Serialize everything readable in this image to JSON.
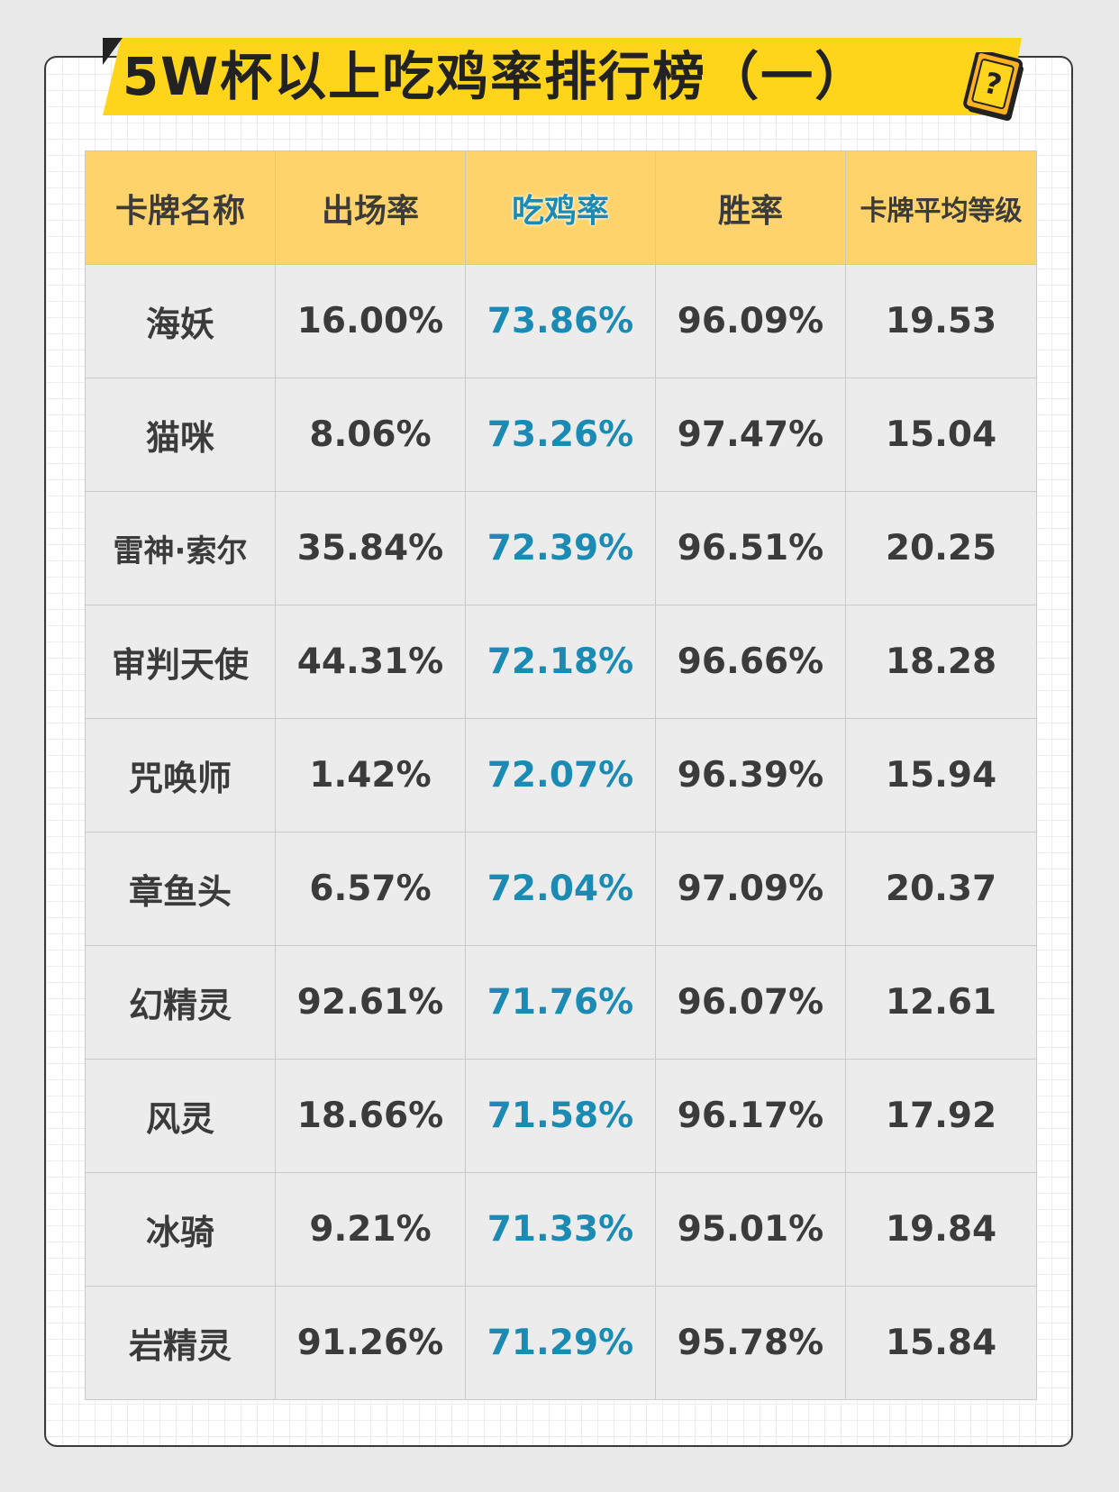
{
  "title": "5W杯以上吃鸡率排行榜（一）",
  "icon": "mystery-card-icon",
  "colors": {
    "banner": "#ffd51c",
    "header_bg": "#ffd36b",
    "highlight": "#1b8bb3",
    "cell_bg": "#ececec"
  },
  "table": {
    "headers": [
      "卡牌名称",
      "出场率",
      "吃鸡率",
      "胜率",
      "卡牌平均等级"
    ],
    "rows": [
      [
        "海妖",
        "16.00%",
        "73.86%",
        "96.09%",
        "19.53"
      ],
      [
        "猫咪",
        "8.06%",
        "73.26%",
        "97.47%",
        "15.04"
      ],
      [
        "雷神·索尔",
        "35.84%",
        "72.39%",
        "96.51%",
        "20.25"
      ],
      [
        "审判天使",
        "44.31%",
        "72.18%",
        "96.66%",
        "18.28"
      ],
      [
        "咒唤师",
        "1.42%",
        "72.07%",
        "96.39%",
        "15.94"
      ],
      [
        "章鱼头",
        "6.57%",
        "72.04%",
        "97.09%",
        "20.37"
      ],
      [
        "幻精灵",
        "92.61%",
        "71.76%",
        "96.07%",
        "12.61"
      ],
      [
        "风灵",
        "18.66%",
        "71.58%",
        "96.17%",
        "17.92"
      ],
      [
        "冰骑",
        "9.21%",
        "71.33%",
        "95.01%",
        "19.84"
      ],
      [
        "岩精灵",
        "91.26%",
        "71.29%",
        "95.78%",
        "15.84"
      ]
    ]
  }
}
